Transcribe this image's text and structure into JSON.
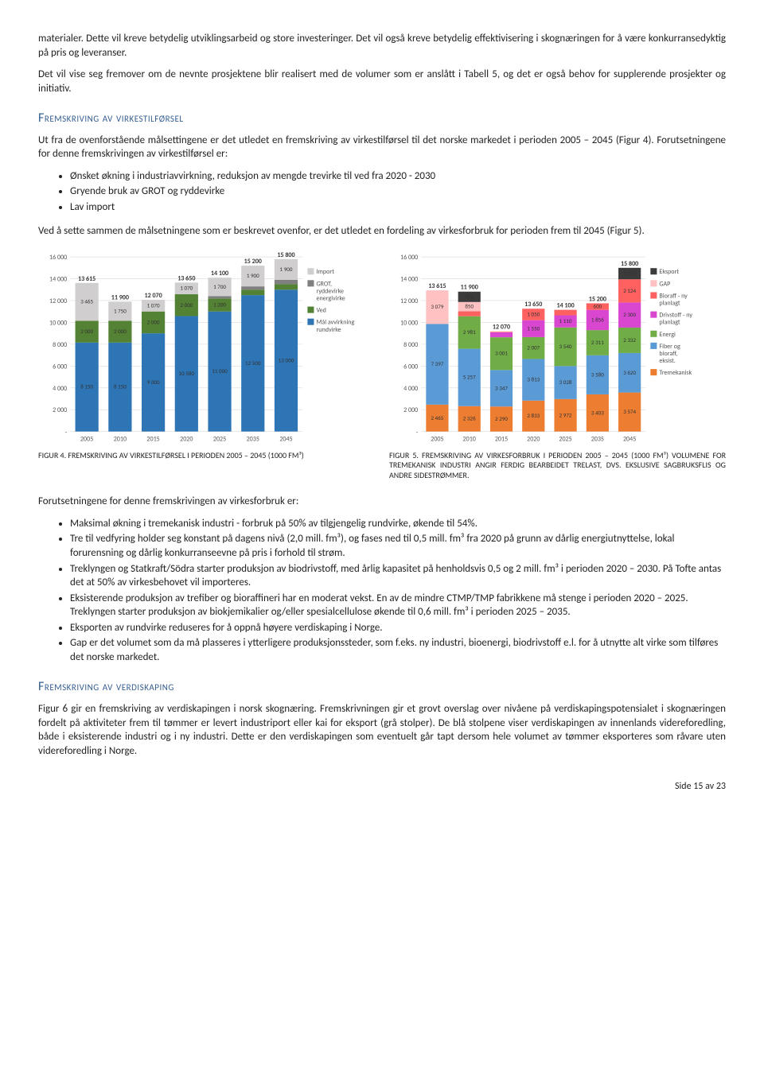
{
  "para_intro": "materialer. Dette vil kreve betydelig utviklingsarbeid og store investeringer. Det vil også kreve betydelig effektivisering i skognæringen for å være konkurransedyktig på pris og leveranser.",
  "para_intro2": "Det vil vise seg fremover om de nevnte prosjektene blir realisert med de volumer som er anslått i Tabell 5, og det er også behov for supplerende prosjekter og initiativ.",
  "heading1": "Fremskriving av virkestilførsel",
  "para_h1_1": "Ut fra de ovenforstående målsettingene er det utledet en fremskriving av virkestilførsel til det norske markedet i perioden 2005 – 2045 (Figur 4). Forutsetningene for denne fremskrivingen av virkestilførsel er:",
  "bullets1": {
    "b0": "Ønsket økning i industriavvirkning, reduksjon av mengde trevirke til ved fra 2020 - 2030",
    "b1": "Gryende bruk av GROT og ryddevirke",
    "b2": "Lav import"
  },
  "para_h1_2": "Ved å sette sammen de målsetningene som er beskrevet ovenfor, er det utledet en fordeling av virkesforbruk for perioden frem til 2045 (Figur 5).",
  "chart4": {
    "type": "stacked-bar",
    "ylim": [
      0,
      16000
    ],
    "ytick_step": 2000,
    "background_color": "#ffffff",
    "grid_color": "#d9d9d9",
    "categories": [
      "2005",
      "2010",
      "2015",
      "2020",
      "2025",
      "2035",
      "2045"
    ],
    "totals": [
      13615,
      11900,
      12070,
      13650,
      14100,
      15200,
      15800
    ],
    "series": [
      {
        "name": "Mål avvirkning rundvirke",
        "color": "#2e75b6",
        "values": [
          8150,
          8150,
          9000,
          10580,
          11000,
          12500,
          13000
        ],
        "labels": [
          "8 150",
          "8 150",
          "9 000",
          "10 580",
          "11 000",
          "12 500",
          "13 000"
        ]
      },
      {
        "name": "Ved",
        "color": "#548235",
        "values": [
          2000,
          2000,
          2000,
          2000,
          1200,
          500,
          500
        ],
        "labels": [
          "2 000",
          "2 000",
          "2 000",
          "2 000",
          "1 200",
          "500",
          "500"
        ]
      },
      {
        "name": "GROT, ryddevirke energivirke",
        "color": "#7f7f7f",
        "values": [
          0,
          0,
          0,
          0,
          200,
          300,
          400
        ],
        "labels": [
          "-",
          "-",
          "-",
          "-",
          "200",
          "300",
          "400"
        ]
      },
      {
        "name": "Import",
        "color": "#d0cece",
        "values": [
          3465,
          1750,
          1070,
          1070,
          1700,
          1900,
          1900
        ],
        "labels": [
          "3 465",
          "1 750",
          "1 070",
          "1 070",
          "1 700",
          "1 900",
          "1 900"
        ]
      }
    ]
  },
  "chart5": {
    "type": "stacked-bar",
    "ylim": [
      0,
      16000
    ],
    "ytick_step": 2000,
    "background_color": "#ffffff",
    "grid_color": "#d9d9d9",
    "categories": [
      "2005",
      "2010",
      "2015",
      "2020",
      "2025",
      "2035",
      "2045"
    ],
    "totals": [
      13615,
      11900,
      12070,
      13650,
      14100,
      15200,
      15800
    ],
    "series": [
      {
        "name": "Tremekanisk",
        "color": "#ed7d31",
        "values": [
          2465,
          2326,
          2290,
          2833,
          2972,
          3403,
          3574
        ],
        "labels": [
          "2 465",
          "2 326",
          "2 290",
          "2 833",
          "2 972",
          "3 403",
          "3 574"
        ]
      },
      {
        "name": "Fiber og bioraff, eksist.",
        "color": "#5b9bd5",
        "values": [
          7397,
          5257,
          3347,
          3813,
          3028,
          3580,
          3620
        ],
        "labels": [
          "7 397",
          "5 257",
          "3 347",
          "3 813",
          "3 028",
          "3 580",
          "3 620"
        ]
      },
      {
        "name": "Energi",
        "color": "#70ad47",
        "values": [
          0,
          2981,
          3001,
          2007,
          3540,
          2311,
          2332
        ],
        "labels": [
          "-",
          "2 981",
          "3 001",
          "2 007",
          "3 540",
          "2 311",
          "2 332"
        ]
      },
      {
        "name": "Drivstoff - ny planlagt",
        "color": "#d946cf",
        "values": [
          0,
          0,
          451,
          1550,
          1110,
          1856,
          2300
        ],
        "labels": [
          "-",
          "-",
          "451",
          "1 550",
          "1 110",
          "1 856",
          "2 300"
        ]
      },
      {
        "name": "Bioraff - ny planlagt",
        "color": "#ff6161",
        "values": [
          0,
          455,
          50,
          1050,
          500,
          600,
          2124
        ],
        "labels": [
          "-",
          "455",
          "50",
          "1 050",
          "500",
          "600",
          "2 124"
        ]
      },
      {
        "name": "GAP",
        "color": "#ffc1c1",
        "values": [
          3079,
          850,
          50,
          0,
          0,
          0,
          0
        ],
        "labels": [
          "3 079",
          "850",
          "50",
          "-",
          "-",
          "-",
          "-"
        ]
      },
      {
        "name": "Eksport",
        "color": "#3b3b3b",
        "values": [
          0,
          950,
          0,
          0,
          0,
          0,
          1050
        ],
        "labels": [
          "-",
          "950",
          "-",
          "-",
          "-",
          "-",
          "1 050"
        ]
      }
    ]
  },
  "caption4": "FIGUR 4. FREMSKRIVING AV VIRKESTILFØRSEL I PERIODEN 2005 – 2045 (1000 FM³)",
  "caption5": "FIGUR 5. FREMSKRIVING AV VIRKESFORBRUK I PERIODEN 2005 – 2045 (1000 FM³) VOLUMENE FOR TREMEKANISK INDUSTRI ANGIR FERDIG BEARBEIDET TRELAST, DVS. EKSLUSIVE SAGBRUKSFLIS OG ANDRE SIDESTRØMMER.",
  "para_after_charts": "Forutsetningene for denne fremskrivingen av virkesforbruk er:",
  "bullets2": {
    "b0": "Maksimal økning i tremekanisk industri - forbruk på 50% av tilgjengelig rundvirke, økende til 54%.",
    "b1": "Tre til vedfyring holder seg konstant på dagens nivå (2,0 mill. fm³), og fases ned til 0,5 mill. fm³  fra 2020 på grunn av dårlig energiutnyttelse, lokal forurensning og dårlig konkurranseevne på pris i forhold til strøm.",
    "b2": "Treklyngen og Statkraft/Södra starter produksjon av biodrivstoff,  med årlig kapasitet på henholdsvis  0,5 og 2 mill. fm³ i perioden 2020 – 2030.   På Tofte antas det at 50% av virkesbehovet vil importeres.",
    "b3": "Eksisterende produksjon av trefiber og bioraffineri har en moderat vekst. En av de mindre CTMP/TMP fabrikkene må stenge i perioden 2020 – 2025.  Treklyngen starter produksjon av biokjemikalier og/eller spesialcellulose økende til 0,6 mill. fm³ i perioden 2025 – 2035.",
    "b4": "Eksporten av rundvirke reduseres for å oppnå høyere verdiskaping i Norge.",
    "b5": "Gap er det volumet som da må plasseres i ytterligere produksjonssteder, som f.eks. ny industri, bioenergi, biodrivstoff e.l.  for å utnytte alt virke som tilføres det norske markedet."
  },
  "heading2": "Fremskriving av verdiskaping",
  "para_h2": "Figur 6 gir en fremskriving av verdiskapingen i norsk skognæring. Fremskrivningen gir et grovt overslag over nivåene på verdiskapingspotensialet i skognæringen fordelt på aktiviteter frem til tømmer er levert industriport eller kai for eksport (grå stolper).   De blå stolpene viser verdiskapingen av innenlands videreforedling, både i eksisterende industri og i ny industri.  Dette er den verdiskapingen som eventuelt går tapt dersom hele volumet av tømmer eksporteres som råvare uten videreforedling i Norge.",
  "footer": "Side 15 av 23"
}
